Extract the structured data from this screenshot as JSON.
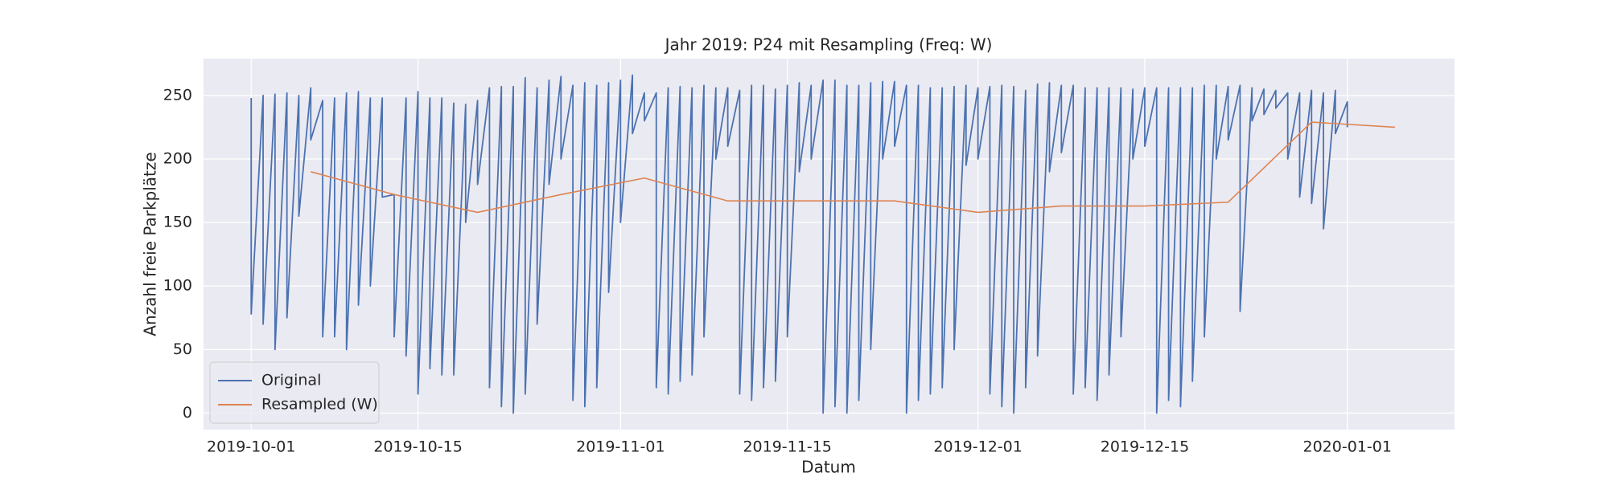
{
  "chart_data": {
    "type": "line",
    "title": "Jahr 2019: P24 mit Resampling (Freq: W)",
    "x_label": "Datum",
    "y_label": "Anzahl freie Parkplätze",
    "xlim": [
      "2019-09-27",
      "2020-01-10"
    ],
    "xticks": [
      "2019-10-01",
      "2019-10-15",
      "2019-11-01",
      "2019-11-15",
      "2019-12-01",
      "2019-12-15",
      "2020-01-01"
    ],
    "ylim": [
      -13,
      279
    ],
    "yticks": [
      0,
      50,
      100,
      150,
      200,
      250
    ],
    "grid": true,
    "legend": "lower left",
    "series": [
      {
        "name": "Original",
        "color": "#4c72b0",
        "x": [
          "2019-10-01",
          "2019-10-01",
          "2019-10-02",
          "2019-10-02",
          "2019-10-03",
          "2019-10-03",
          "2019-10-04",
          "2019-10-04",
          "2019-10-05",
          "2019-10-05",
          "2019-10-06",
          "2019-10-06",
          "2019-10-07",
          "2019-10-07",
          "2019-10-08",
          "2019-10-08",
          "2019-10-09",
          "2019-10-09",
          "2019-10-10",
          "2019-10-10",
          "2019-10-11",
          "2019-10-11",
          "2019-10-12",
          "2019-10-12",
          "2019-10-13",
          "2019-10-13",
          "2019-10-14",
          "2019-10-14",
          "2019-10-15",
          "2019-10-15",
          "2019-10-16",
          "2019-10-16",
          "2019-10-17",
          "2019-10-17",
          "2019-10-18",
          "2019-10-18",
          "2019-10-19",
          "2019-10-19",
          "2019-10-20",
          "2019-10-20",
          "2019-10-21",
          "2019-10-21",
          "2019-10-22",
          "2019-10-22",
          "2019-10-23",
          "2019-10-23",
          "2019-10-24",
          "2019-10-24",
          "2019-10-25",
          "2019-10-25",
          "2019-10-26",
          "2019-10-26",
          "2019-10-27",
          "2019-10-27",
          "2019-10-28",
          "2019-10-28",
          "2019-10-29",
          "2019-10-29",
          "2019-10-30",
          "2019-10-30",
          "2019-10-31",
          "2019-10-31",
          "2019-11-01",
          "2019-11-01",
          "2019-11-02",
          "2019-11-02",
          "2019-11-03",
          "2019-11-03",
          "2019-11-04",
          "2019-11-04",
          "2019-11-05",
          "2019-11-05",
          "2019-11-06",
          "2019-11-06",
          "2019-11-07",
          "2019-11-07",
          "2019-11-08",
          "2019-11-08",
          "2019-11-09",
          "2019-11-09",
          "2019-11-10",
          "2019-11-10",
          "2019-11-11",
          "2019-11-11",
          "2019-11-12",
          "2019-11-12",
          "2019-11-13",
          "2019-11-13",
          "2019-11-14",
          "2019-11-14",
          "2019-11-15",
          "2019-11-15",
          "2019-11-16",
          "2019-11-16",
          "2019-11-17",
          "2019-11-17",
          "2019-11-18",
          "2019-11-18",
          "2019-11-19",
          "2019-11-19",
          "2019-11-20",
          "2019-11-20",
          "2019-11-21",
          "2019-11-21",
          "2019-11-22",
          "2019-11-22",
          "2019-11-23",
          "2019-11-23",
          "2019-11-24",
          "2019-11-24",
          "2019-11-25",
          "2019-11-25",
          "2019-11-26",
          "2019-11-26",
          "2019-11-27",
          "2019-11-27",
          "2019-11-28",
          "2019-11-28",
          "2019-11-29",
          "2019-11-29",
          "2019-11-30",
          "2019-11-30",
          "2019-12-01",
          "2019-12-01",
          "2019-12-02",
          "2019-12-02",
          "2019-12-03",
          "2019-12-03",
          "2019-12-04",
          "2019-12-04",
          "2019-12-05",
          "2019-12-05",
          "2019-12-06",
          "2019-12-06",
          "2019-12-07",
          "2019-12-07",
          "2019-12-08",
          "2019-12-08",
          "2019-12-09",
          "2019-12-09",
          "2019-12-10",
          "2019-12-10",
          "2019-12-11",
          "2019-12-11",
          "2019-12-12",
          "2019-12-12",
          "2019-12-13",
          "2019-12-13",
          "2019-12-14",
          "2019-12-14",
          "2019-12-15",
          "2019-12-15",
          "2019-12-16",
          "2019-12-16",
          "2019-12-17",
          "2019-12-17",
          "2019-12-18",
          "2019-12-18",
          "2019-12-19",
          "2019-12-19",
          "2019-12-20",
          "2019-12-20",
          "2019-12-21",
          "2019-12-21",
          "2019-12-22",
          "2019-12-22",
          "2019-12-23",
          "2019-12-23",
          "2019-12-24",
          "2019-12-24",
          "2019-12-25",
          "2019-12-25",
          "2019-12-26",
          "2019-12-26",
          "2019-12-27",
          "2019-12-27",
          "2019-12-28",
          "2019-12-28",
          "2019-12-29",
          "2019-12-29",
          "2019-12-30",
          "2019-12-30",
          "2019-12-31",
          "2019-12-31",
          "2020-01-01",
          "2020-01-01"
        ],
        "values": [
          248,
          78,
          250,
          70,
          251,
          50,
          252,
          75,
          250,
          155,
          256,
          215,
          246,
          60,
          248,
          60,
          252,
          50,
          253,
          85,
          248,
          100,
          248,
          170,
          172,
          60,
          248,
          45,
          253,
          15,
          248,
          35,
          248,
          30,
          244,
          30,
          243,
          150,
          246,
          180,
          256,
          20,
          257,
          5,
          257,
          0,
          264,
          15,
          256,
          70,
          262,
          180,
          265,
          200,
          258,
          10,
          260,
          5,
          258,
          20,
          260,
          95,
          262,
          150,
          266,
          220,
          252,
          230,
          252,
          20,
          256,
          15,
          257,
          25,
          256,
          30,
          258,
          60,
          256,
          200,
          256,
          210,
          254,
          15,
          258,
          10,
          258,
          20,
          255,
          25,
          258,
          60,
          260,
          190,
          258,
          200,
          262,
          0,
          262,
          5,
          258,
          0,
          258,
          10,
          260,
          50,
          261,
          200,
          261,
          210,
          258,
          0,
          258,
          10,
          256,
          15,
          256,
          20,
          257,
          50,
          258,
          195,
          256,
          200,
          257,
          15,
          258,
          5,
          257,
          0,
          254,
          20,
          259,
          45,
          260,
          190,
          258,
          205,
          258,
          15,
          256,
          20,
          256,
          10,
          256,
          30,
          256,
          60,
          255,
          200,
          256,
          210,
          256,
          0,
          256,
          10,
          256,
          5,
          256,
          25,
          258,
          60,
          258,
          200,
          257,
          215,
          258,
          80,
          256,
          230,
          255,
          235,
          254,
          240,
          252,
          200,
          252,
          170,
          254,
          165,
          252,
          145,
          254,
          220,
          245,
          225
        ]
      },
      {
        "name": "Resampled (W)",
        "color": "#dd8452",
        "x": [
          "2019-10-06",
          "2019-10-13",
          "2019-10-20",
          "2019-10-27",
          "2019-11-03",
          "2019-11-10",
          "2019-11-17",
          "2019-11-24",
          "2019-12-01",
          "2019-12-08",
          "2019-12-15",
          "2019-12-22",
          "2019-12-29",
          "2020-01-05"
        ],
        "values": [
          190,
          172,
          158,
          172,
          185,
          167,
          167,
          167,
          158,
          163,
          163,
          166,
          229,
          225
        ]
      }
    ]
  }
}
